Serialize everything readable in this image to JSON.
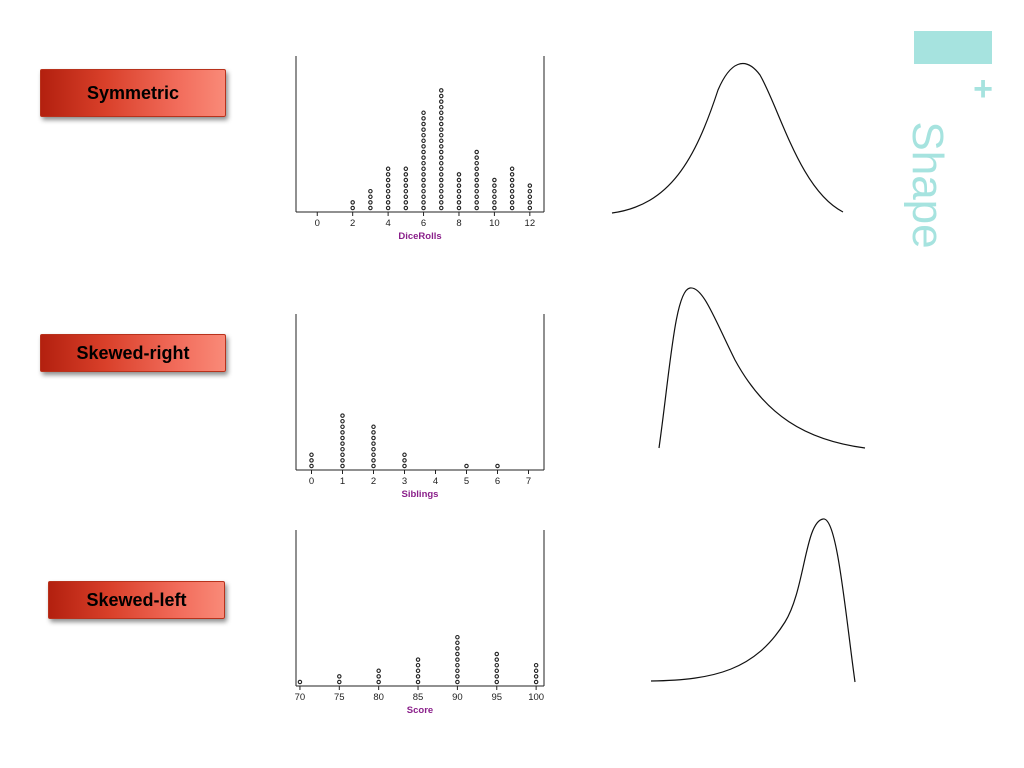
{
  "labels": {
    "symmetric": "Symmetric",
    "skewed_right": "Skewed-right",
    "skewed_left": "Skewed-left"
  },
  "brand": {
    "plus": "+",
    "title": "Shape",
    "accent_color": "#a6e3df"
  },
  "colors": {
    "label_fill_dark": "#b3200f",
    "label_fill_light": "#f98a78",
    "axis_title": "#8a1f8a"
  },
  "chart_data": [
    {
      "type": "dotplot",
      "xlabel": "DiceRolls",
      "ticks": [
        0,
        2,
        4,
        6,
        8,
        10,
        12
      ],
      "xlim": [
        -1.2,
        12.8
      ],
      "x": [
        2,
        3,
        4,
        5,
        6,
        7,
        8,
        9,
        10,
        11,
        12
      ],
      "counts": [
        2,
        4,
        8,
        8,
        18,
        22,
        7,
        11,
        6,
        8,
        5
      ]
    },
    {
      "type": "dotplot",
      "xlabel": "Siblings",
      "ticks": [
        0,
        1,
        2,
        3,
        4,
        5,
        6,
        7
      ],
      "xlim": [
        -0.5,
        7.5
      ],
      "x": [
        0,
        1,
        2,
        3,
        5,
        6
      ],
      "counts": [
        3,
        10,
        8,
        3,
        1,
        1
      ]
    },
    {
      "type": "dotplot",
      "xlabel": "Score",
      "ticks": [
        70,
        75,
        80,
        85,
        90,
        95,
        100
      ],
      "xlim": [
        69.5,
        101
      ],
      "x": [
        70,
        75,
        80,
        85,
        90,
        95,
        100
      ],
      "counts": [
        1,
        2,
        3,
        5,
        9,
        6,
        4
      ]
    },
    {
      "type": "line",
      "name": "symmetric-curve",
      "shape": "symmetric"
    },
    {
      "type": "line",
      "name": "skewed-right-curve",
      "shape": "skewed-right"
    },
    {
      "type": "line",
      "name": "skewed-left-curve",
      "shape": "skewed-left"
    }
  ]
}
